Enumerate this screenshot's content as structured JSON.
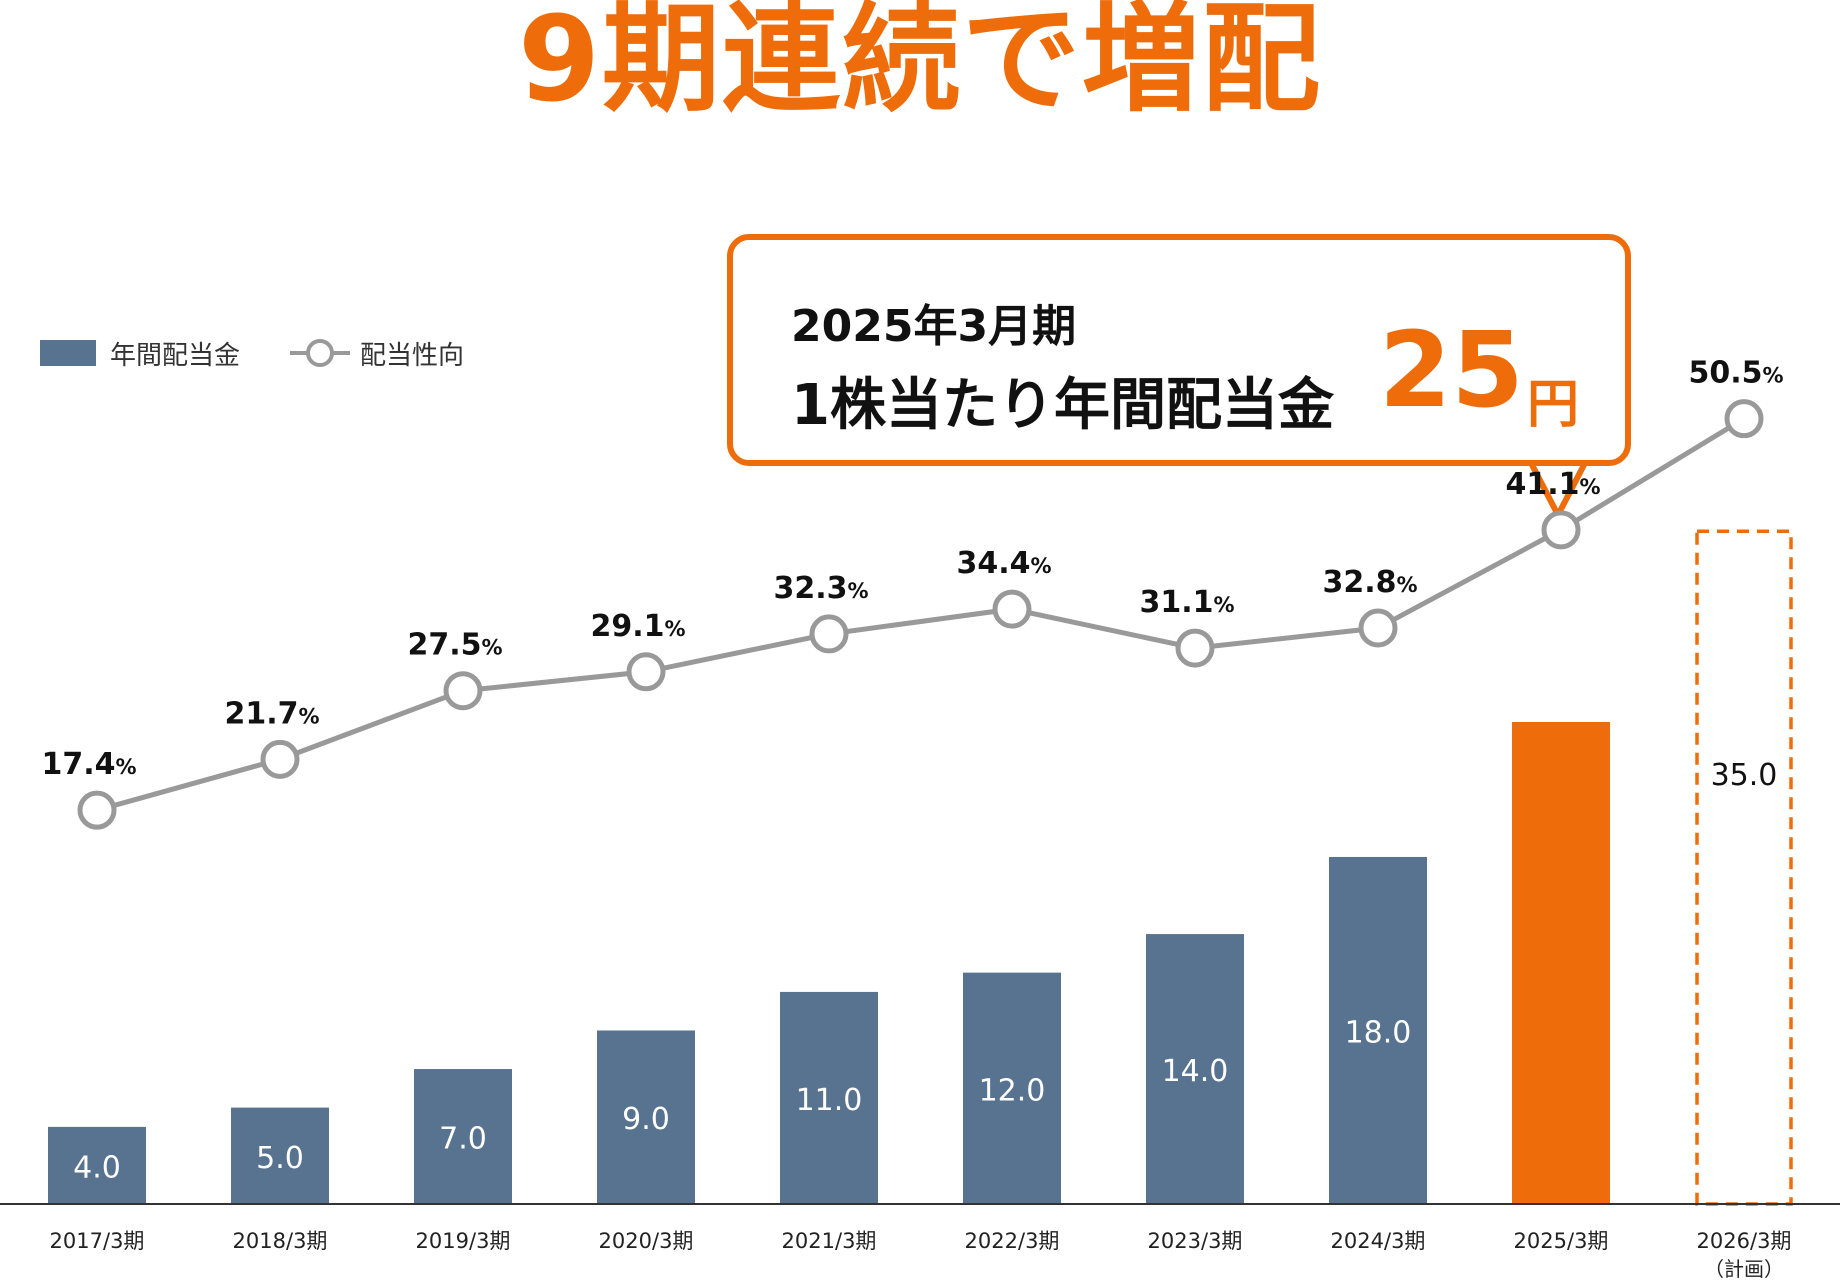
{
  "headline": "9期連続で増配",
  "legend": {
    "bar_label": "年間配当金",
    "line_label": "配当性向"
  },
  "callout": {
    "line1": "2025年3月期",
    "line2": "1株当たり年間配当金",
    "amount": "25",
    "unit": "円"
  },
  "colors": {
    "bar": "#57738f",
    "highlight": "#ee6c0a",
    "line": "#999999",
    "text": "#111111"
  },
  "chart_data": {
    "type": "bar",
    "categories": [
      "2017/3期",
      "2018/3期",
      "2019/3期",
      "2020/3期",
      "2021/3期",
      "2022/3期",
      "2023/3期",
      "2024/3期",
      "2025/3期",
      "2026/3期"
    ],
    "category_notes": [
      "",
      "",
      "",
      "",
      "",
      "",
      "",
      "",
      "",
      "（計画）"
    ],
    "series": [
      {
        "name": "年間配当金",
        "type": "bar",
        "values": [
          4.0,
          5.0,
          7.0,
          9.0,
          11.0,
          12.0,
          14.0,
          18.0,
          25.0,
          35.0
        ],
        "labels": [
          "4.0",
          "5.0",
          "7.0",
          "9.0",
          "11.0",
          "12.0",
          "14.0",
          "18.0",
          "",
          "35.0"
        ]
      },
      {
        "name": "配当性向",
        "type": "line",
        "values": [
          17.4,
          21.7,
          27.5,
          29.1,
          32.3,
          34.4,
          31.1,
          32.8,
          41.1,
          50.5
        ],
        "labels": [
          "17.4",
          "21.7",
          "27.5",
          "29.1",
          "32.3",
          "34.4",
          "31.1",
          "32.8",
          "41.1",
          "50.5"
        ],
        "unit": "%"
      }
    ],
    "highlight_index": 8,
    "planned_index": 9,
    "xlabel": "",
    "ylabel": "",
    "bar_ylim": [
      0,
      50
    ],
    "line_ylim": [
      0,
      70
    ],
    "grid": false,
    "legend_position": "top-left"
  }
}
